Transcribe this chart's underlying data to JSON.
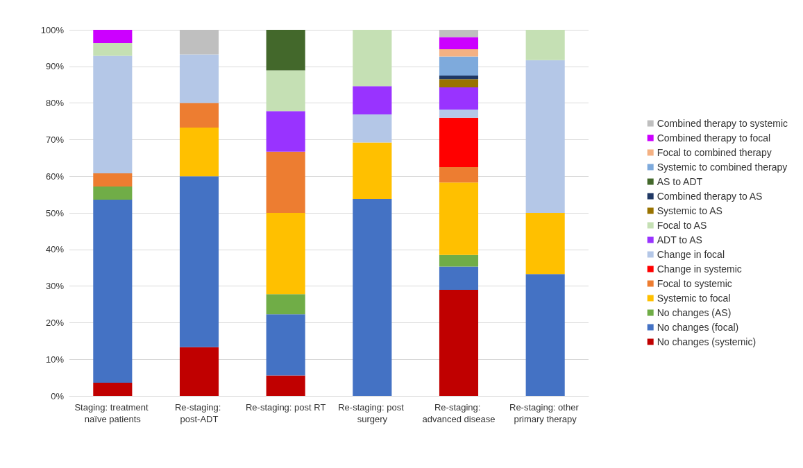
{
  "chart_data": {
    "type": "bar",
    "stacked": true,
    "categories": [
      "Staging: treatment naïve patients",
      "Re-staging: post-ADT",
      "Re-staging: post RT",
      "Re-staging: post surgery",
      "Re-staging: advanced disease",
      "Re-staging: other primary therapy"
    ],
    "ylim": [
      0,
      100
    ],
    "yticks": [
      {
        "value": 0,
        "label": "0%"
      },
      {
        "value": 10,
        "label": "10%"
      },
      {
        "value": 20,
        "label": "20%"
      },
      {
        "value": 30,
        "label": "30%"
      },
      {
        "value": 40,
        "label": "40%"
      },
      {
        "value": 50,
        "label": "50%"
      },
      {
        "value": 60,
        "label": "60%"
      },
      {
        "value": 70,
        "label": "70%"
      },
      {
        "value": 80,
        "label": "80%"
      },
      {
        "value": 90,
        "label": "90%"
      },
      {
        "value": 100,
        "label": "100%"
      }
    ],
    "grid": "y",
    "legend": "right",
    "series": [
      {
        "name": "No changes (systemic)",
        "color": "#c00000",
        "values": [
          3.6,
          13.3,
          5.6,
          null,
          29.0,
          null
        ]
      },
      {
        "name": "No changes (focal)",
        "color": "#4472c4",
        "values": [
          50,
          46.7,
          16.7,
          53.8,
          6.3,
          33.3
        ]
      },
      {
        "name": "No changes (AS)",
        "color": "#70ad47",
        "values": [
          3.6,
          null,
          5.5,
          null,
          3.2,
          null
        ]
      },
      {
        "name": "Systemic to focal",
        "color": "#ffc000",
        "values": [
          null,
          13.3,
          22.2,
          15.4,
          19.8,
          16.7
        ]
      },
      {
        "name": "Focal to systemic",
        "color": "#ed7d31",
        "values": [
          3.6,
          6.7,
          16.7,
          null,
          4.2,
          null
        ]
      },
      {
        "name": "Change in systemic",
        "color": "#ff0000",
        "values": [
          null,
          null,
          null,
          null,
          13.5,
          null
        ]
      },
      {
        "name": "Change in focal",
        "color": "#b4c7e7",
        "values": [
          32.1,
          13.3,
          null,
          7.7,
          2.2,
          41.7
        ]
      },
      {
        "name": "ADT to AS",
        "color": "#9933ff",
        "values": [
          null,
          null,
          11.1,
          7.7,
          6.1,
          null
        ]
      },
      {
        "name": "Focal to AS",
        "color": "#c5e0b4",
        "values": [
          3.5,
          null,
          11.1,
          15.4,
          null,
          8.3
        ]
      },
      {
        "name": "Systemic to AS",
        "color": "#997300",
        "values": [
          null,
          null,
          null,
          null,
          2.2,
          null
        ]
      },
      {
        "name": "Combined therapy to AS",
        "color": "#203864",
        "values": [
          null,
          null,
          null,
          null,
          1.0,
          null
        ]
      },
      {
        "name": "AS to ADT",
        "color": "#43682b",
        "values": [
          null,
          null,
          11.1,
          null,
          null,
          null
        ]
      },
      {
        "name": "Systemic to combined therapy",
        "color": "#7eaadc",
        "values": [
          null,
          null,
          null,
          null,
          5.2,
          null
        ]
      },
      {
        "name": "Focal to combined therapy",
        "color": "#f4b183",
        "values": [
          null,
          null,
          null,
          null,
          2.0,
          null
        ]
      },
      {
        "name": "Combined therapy to focal",
        "color": "#cc00ff",
        "values": [
          3.6,
          null,
          null,
          null,
          3.3,
          null
        ]
      },
      {
        "name": "Combined therapy to systemic",
        "color": "#bfbfbf",
        "values": [
          null,
          6.7,
          null,
          null,
          2.0,
          null
        ]
      }
    ]
  }
}
